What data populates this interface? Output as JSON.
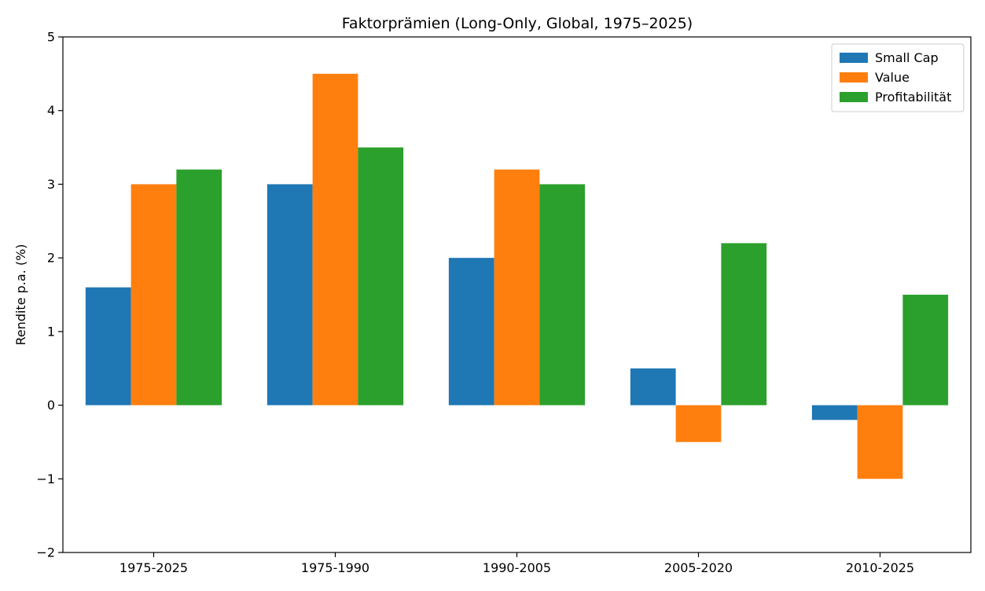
{
  "chart_data": {
    "type": "bar",
    "title": "Faktorprämien (Long-Only, Global, 1975–2025)",
    "xlabel": "",
    "ylabel": "Rendite p.a. (%)",
    "ylim": [
      -2,
      5
    ],
    "yticks": [
      -2,
      -1,
      0,
      1,
      2,
      3,
      4,
      5
    ],
    "ytick_labels": [
      "−2",
      "−1",
      "0",
      "1",
      "2",
      "3",
      "4",
      "5"
    ],
    "categories": [
      "1975-2025",
      "1975-1990",
      "1990-2005",
      "2005-2020",
      "2010-2025"
    ],
    "series": [
      {
        "name": "Small Cap",
        "color": "#1f77b4",
        "values": [
          1.6,
          3.0,
          2.0,
          0.5,
          -0.2
        ]
      },
      {
        "name": "Value",
        "color": "#ff7f0e",
        "values": [
          3.0,
          4.5,
          3.2,
          -0.5,
          -1.0
        ]
      },
      {
        "name": "Profitabilität",
        "color": "#2ca02c",
        "values": [
          3.2,
          3.5,
          3.0,
          2.2,
          1.5
        ]
      }
    ],
    "grid": false,
    "legend_position": "top-right"
  }
}
